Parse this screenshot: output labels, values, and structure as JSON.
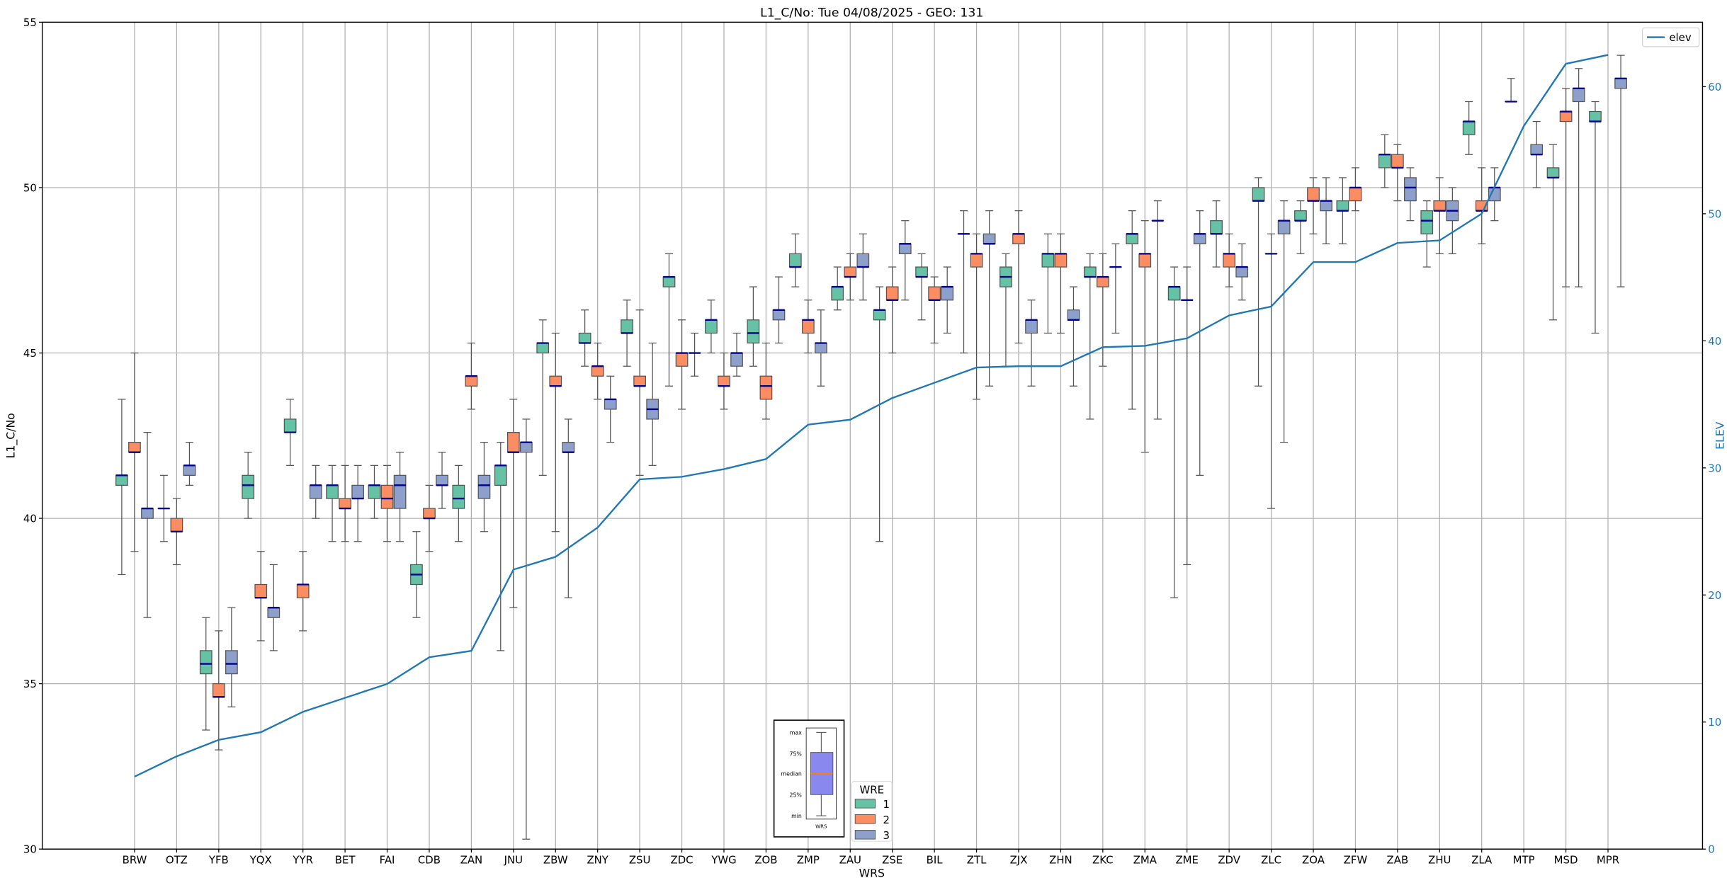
{
  "chart_data": {
    "type": "box",
    "title": "L1_C/No: Tue 04/08/2025 - GEO: 131",
    "xlabel": "WRS",
    "ylabel": "L1_C/No",
    "y2label": "ELEV",
    "ylim": [
      30,
      55
    ],
    "yticks": [
      30,
      35,
      40,
      45,
      50,
      55
    ],
    "y2lim": [
      0,
      65
    ],
    "y2ticks": [
      0,
      10,
      20,
      30,
      40,
      50,
      60
    ],
    "grid": true,
    "categories": [
      "BRW",
      "OTZ",
      "YFB",
      "YQX",
      "YYR",
      "BET",
      "FAI",
      "CDB",
      "ZAN",
      "JNU",
      "ZBW",
      "ZNY",
      "ZSU",
      "ZDC",
      "YWG",
      "ZOB",
      "ZMP",
      "ZAU",
      "ZSE",
      "BIL",
      "ZTL",
      "ZJX",
      "ZHN",
      "ZKC",
      "ZMA",
      "ZME",
      "ZDV",
      "ZLC",
      "ZOA",
      "ZFW",
      "ZAB",
      "ZHU",
      "ZLA",
      "MTP",
      "MSD",
      "MPR"
    ],
    "box_stats_order": [
      "min",
      "q1",
      "median",
      "q3",
      "max"
    ],
    "legend": {
      "title": "WRE",
      "placement": "bottom-center"
    },
    "series": [
      {
        "name": "1",
        "color": "#66c2a5",
        "boxes": [
          [
            38.3,
            41.0,
            41.3,
            41.3,
            43.6
          ],
          [
            39.3,
            40.3,
            40.3,
            40.3,
            41.3
          ],
          [
            33.6,
            35.3,
            35.6,
            36.0,
            37.0
          ],
          [
            40.0,
            40.6,
            41.0,
            41.3,
            42.0
          ],
          [
            41.6,
            42.6,
            42.6,
            43.0,
            43.6
          ],
          [
            39.3,
            40.6,
            41.0,
            41.0,
            41.6
          ],
          [
            40.0,
            40.6,
            41.0,
            41.0,
            41.6
          ],
          [
            37.0,
            38.0,
            38.3,
            38.6,
            39.6
          ],
          [
            39.3,
            40.3,
            40.6,
            41.0,
            41.6
          ],
          [
            36.0,
            41.0,
            41.6,
            41.6,
            42.3
          ],
          [
            41.3,
            45.0,
            45.3,
            45.3,
            46.0
          ],
          [
            44.6,
            45.3,
            45.3,
            45.6,
            46.3
          ],
          [
            44.6,
            45.6,
            45.6,
            46.0,
            46.6
          ],
          [
            44.0,
            47.0,
            47.3,
            47.3,
            48.0
          ],
          [
            45.0,
            45.6,
            46.0,
            46.0,
            46.6
          ],
          [
            44.6,
            45.3,
            45.6,
            46.0,
            47.0
          ],
          [
            47.0,
            47.6,
            47.6,
            48.0,
            48.6
          ],
          [
            46.3,
            46.6,
            47.0,
            47.0,
            47.6
          ],
          [
            39.3,
            46.0,
            46.3,
            46.3,
            47.0
          ],
          [
            46.0,
            47.3,
            47.3,
            47.6,
            48.0
          ],
          [
            45.0,
            48.6,
            48.6,
            48.6,
            49.3
          ],
          [
            44.6,
            47.0,
            47.3,
            47.6,
            48.0
          ],
          [
            45.6,
            47.6,
            48.0,
            48.0,
            48.6
          ],
          [
            43.0,
            47.3,
            47.3,
            47.6,
            48.0
          ],
          [
            43.3,
            48.3,
            48.6,
            48.6,
            49.3
          ],
          [
            37.6,
            46.6,
            47.0,
            47.0,
            47.6
          ],
          [
            47.6,
            48.6,
            48.6,
            49.0,
            49.6
          ],
          [
            44.0,
            49.6,
            49.6,
            50.0,
            50.3
          ],
          [
            48.0,
            49.0,
            49.0,
            49.3,
            49.6
          ],
          [
            48.3,
            49.3,
            49.3,
            49.6,
            50.3
          ],
          [
            50.0,
            50.6,
            51.0,
            51.0,
            51.6
          ],
          [
            47.6,
            48.6,
            49.0,
            49.3,
            49.6
          ],
          [
            51.0,
            51.6,
            52.0,
            52.0,
            52.6
          ],
          [
            52.6,
            52.6,
            52.6,
            52.6,
            53.3
          ],
          [
            46.0,
            50.3,
            50.3,
            50.6,
            51.3
          ],
          [
            45.6,
            52.0,
            52.0,
            52.3,
            52.6
          ]
        ]
      },
      {
        "name": "2",
        "color": "#fc8d62",
        "boxes": [
          [
            39.0,
            42.0,
            42.0,
            42.3,
            45.0
          ],
          [
            38.6,
            39.6,
            39.6,
            40.0,
            40.6
          ],
          [
            33.0,
            34.6,
            34.6,
            35.0,
            36.6
          ],
          [
            36.3,
            37.6,
            37.6,
            38.0,
            39.0
          ],
          [
            36.6,
            37.6,
            38.0,
            38.0,
            39.0
          ],
          [
            39.3,
            40.3,
            40.3,
            40.6,
            41.6
          ],
          [
            39.3,
            40.3,
            40.6,
            41.0,
            41.6
          ],
          [
            39.0,
            40.0,
            40.0,
            40.3,
            41.0
          ],
          [
            43.3,
            44.0,
            44.3,
            44.3,
            45.3
          ],
          [
            37.3,
            42.0,
            42.0,
            42.6,
            43.6
          ],
          [
            39.6,
            44.0,
            44.0,
            44.3,
            45.6
          ],
          [
            43.6,
            44.3,
            44.6,
            44.6,
            45.3
          ],
          [
            41.3,
            44.0,
            44.0,
            44.3,
            46.3
          ],
          [
            43.3,
            44.6,
            45.0,
            45.0,
            46.0
          ],
          [
            43.3,
            44.0,
            44.0,
            44.3,
            45.0
          ],
          [
            43.0,
            43.6,
            44.0,
            44.3,
            45.3
          ],
          [
            45.0,
            45.6,
            46.0,
            46.0,
            46.6
          ],
          [
            46.6,
            47.3,
            47.3,
            47.6,
            48.0
          ],
          [
            45.0,
            46.6,
            46.6,
            47.0,
            47.6
          ],
          [
            45.3,
            46.6,
            46.6,
            47.0,
            47.3
          ],
          [
            43.6,
            47.6,
            48.0,
            48.0,
            48.6
          ],
          [
            45.3,
            48.3,
            48.6,
            48.6,
            49.3
          ],
          [
            45.6,
            47.6,
            48.0,
            48.0,
            48.6
          ],
          [
            44.6,
            47.0,
            47.3,
            47.3,
            48.0
          ],
          [
            42.0,
            47.6,
            48.0,
            48.0,
            49.0
          ],
          [
            38.6,
            46.6,
            46.6,
            46.6,
            47.6
          ],
          [
            47.0,
            47.6,
            48.0,
            48.0,
            48.6
          ],
          [
            40.3,
            48.0,
            48.0,
            48.0,
            48.6
          ],
          [
            48.6,
            49.6,
            49.6,
            50.0,
            50.3
          ],
          [
            49.3,
            49.6,
            50.0,
            50.0,
            50.6
          ],
          [
            49.6,
            50.6,
            50.6,
            51.0,
            51.3
          ],
          [
            48.0,
            49.3,
            49.3,
            49.6,
            50.3
          ],
          [
            48.3,
            49.3,
            49.3,
            49.6,
            50.6
          ],
          null,
          [
            47.0,
            52.0,
            52.3,
            52.3,
            53.0
          ],
          null
        ]
      },
      {
        "name": "3",
        "color": "#8da0cb",
        "boxes": [
          [
            37.0,
            40.0,
            40.3,
            40.3,
            42.6
          ],
          [
            41.0,
            41.3,
            41.6,
            41.6,
            42.3
          ],
          [
            34.3,
            35.3,
            35.6,
            36.0,
            37.3
          ],
          [
            36.0,
            37.0,
            37.3,
            37.3,
            38.6
          ],
          [
            40.0,
            40.6,
            41.0,
            41.0,
            41.6
          ],
          [
            39.3,
            40.6,
            40.6,
            41.0,
            41.6
          ],
          [
            39.3,
            40.3,
            41.0,
            41.3,
            42.0
          ],
          [
            40.3,
            41.0,
            41.0,
            41.3,
            42.0
          ],
          [
            39.6,
            40.6,
            41.0,
            41.3,
            42.3
          ],
          [
            30.3,
            42.0,
            42.3,
            42.3,
            43.0
          ],
          [
            37.6,
            42.0,
            42.0,
            42.3,
            43.0
          ],
          [
            42.3,
            43.3,
            43.6,
            43.6,
            44.3
          ],
          [
            41.6,
            43.0,
            43.3,
            43.6,
            45.3
          ],
          [
            44.3,
            45.0,
            45.0,
            45.0,
            45.6
          ],
          [
            44.3,
            44.6,
            45.0,
            45.0,
            45.6
          ],
          [
            45.3,
            46.0,
            46.3,
            46.3,
            47.3
          ],
          [
            44.0,
            45.0,
            45.3,
            45.3,
            46.3
          ],
          [
            46.6,
            47.6,
            47.6,
            48.0,
            48.6
          ],
          [
            46.6,
            48.0,
            48.3,
            48.3,
            49.0
          ],
          [
            45.6,
            46.6,
            47.0,
            47.0,
            47.6
          ],
          [
            44.0,
            48.3,
            48.3,
            48.6,
            49.3
          ],
          [
            44.0,
            45.6,
            46.0,
            46.0,
            46.6
          ],
          [
            44.0,
            46.0,
            46.0,
            46.3,
            47.0
          ],
          [
            45.6,
            47.6,
            47.6,
            47.6,
            48.3
          ],
          [
            43.0,
            49.0,
            49.0,
            49.0,
            49.6
          ],
          [
            41.3,
            48.3,
            48.6,
            48.6,
            49.3
          ],
          [
            46.6,
            47.3,
            47.6,
            47.6,
            48.3
          ],
          [
            42.3,
            48.6,
            49.0,
            49.0,
            49.6
          ],
          [
            48.3,
            49.3,
            49.6,
            49.6,
            50.3
          ],
          null,
          [
            49.0,
            49.6,
            50.0,
            50.3,
            50.6
          ],
          [
            48.0,
            49.0,
            49.3,
            49.6,
            50.0
          ],
          [
            49.0,
            49.6,
            50.0,
            50.0,
            50.6
          ],
          [
            50.0,
            51.0,
            51.0,
            51.3,
            52.0
          ],
          [
            47.0,
            52.6,
            53.0,
            53.0,
            53.6
          ],
          [
            47.0,
            53.0,
            53.3,
            53.3,
            54.0
          ]
        ]
      }
    ],
    "line_series": {
      "name": "elev",
      "color": "#1f77b4",
      "axis": "right",
      "legend_placement": "top-right",
      "values": [
        5.7,
        7.3,
        8.6,
        9.2,
        10.8,
        11.9,
        13.0,
        15.1,
        15.6,
        22.0,
        23.0,
        25.3,
        29.1,
        29.3,
        29.9,
        30.7,
        33.4,
        33.8,
        35.5,
        36.7,
        37.9,
        38.0,
        38.0,
        39.5,
        39.6,
        40.2,
        42.0,
        42.7,
        46.2,
        46.2,
        47.7,
        47.9,
        50.0,
        56.9,
        61.8,
        62.5
      ]
    },
    "median_color": "#00008b",
    "inset_key": {
      "labels": [
        "max",
        "75%",
        "median",
        "25%",
        "min"
      ],
      "xlabel": "WRS",
      "box_color": "#8888ee",
      "median_color": "#ff7f0e"
    }
  }
}
